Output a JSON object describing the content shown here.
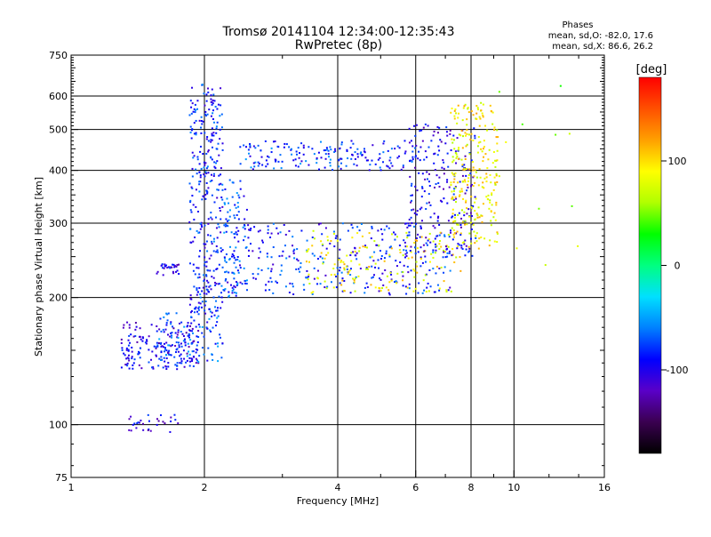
{
  "chart_data": {
    "type": "scatter",
    "title": "Tromsø 20141104 12:34:00-12:35:43",
    "subtitle": "RwPretec (8p)",
    "xlabel": "Frequency [MHz]",
    "ylabel": "Stationary phase Virtual Height [km]",
    "x_scale": "log",
    "y_scale": "log",
    "xlim": [
      1,
      16
    ],
    "ylim": [
      75,
      750
    ],
    "x_ticks": [
      1,
      2,
      4,
      6,
      8,
      10,
      16
    ],
    "x_tick_labels": [
      "1",
      "2",
      "4",
      "6",
      "8",
      "10",
      "16"
    ],
    "y_ticks": [
      75,
      100,
      200,
      300,
      400,
      500,
      600,
      750
    ],
    "y_tick_labels": [
      "75",
      "100",
      "200",
      "300",
      "400",
      "500",
      "600",
      "750"
    ],
    "x_gridlines": [
      2,
      4,
      6,
      8,
      10
    ],
    "y_gridlines": [
      100,
      200,
      300,
      400,
      500,
      600
    ],
    "grid": true,
    "stats": {
      "heading": "Phases",
      "line_o": "mean, sd,O: -82.0, 17.6",
      "line_x": "mean, sd,X: 86.6, 26.2"
    },
    "colorbar": {
      "label": "[deg]",
      "range": [
        -180,
        180
      ],
      "ticks": [
        100,
        0,
        -100
      ],
      "tick_labels": [
        "100",
        "0",
        "-100"
      ],
      "colors": [
        "#000000",
        "#3a0050",
        "#5a00c8",
        "#0000ff",
        "#0080ff",
        "#00e0ff",
        "#00ff80",
        "#00ff00",
        "#b0ff00",
        "#ffff00",
        "#ffa000",
        "#ff5000",
        "#ff0000"
      ]
    },
    "point_clusters": [
      {
        "name": "low-layer-below-2mhz",
        "x_range": [
          1.3,
          1.95
        ],
        "y_range": [
          135,
          175
        ],
        "phase": -100,
        "count": 180
      },
      {
        "name": "e-layer-spread",
        "x_range": [
          1.55,
          2.2
        ],
        "y_range": [
          140,
          190
        ],
        "phase": -75,
        "count": 120
      },
      {
        "name": "sporadic-100km",
        "x_range": [
          1.35,
          1.75
        ],
        "y_range": [
          96,
          106
        ],
        "phase": -100,
        "count": 30
      },
      {
        "name": "f-spread-2mhz-column",
        "x_range": [
          1.85,
          2.2
        ],
        "y_range": [
          180,
          640
        ],
        "phase": -85,
        "count": 320
      },
      {
        "name": "f-2mhz-column-outer",
        "x_range": [
          2.2,
          2.5
        ],
        "y_range": [
          200,
          380
        ],
        "phase": -75,
        "count": 90
      },
      {
        "name": "spread-230km-patch",
        "x_range": [
          1.55,
          1.75
        ],
        "y_range": [
          225,
          240
        ],
        "phase": -100,
        "count": 30
      },
      {
        "name": "high-echo-x-trace",
        "x_range": [
          2.4,
          6.0
        ],
        "y_range": [
          400,
          470
        ],
        "phase": -80,
        "count": 180
      },
      {
        "name": "main-f-trace",
        "x_range": [
          2.2,
          7.2
        ],
        "y_range": [
          203,
          300
        ],
        "phase": -85,
        "count": 320
      },
      {
        "name": "x-mode-trace",
        "x_range": [
          3.4,
          7.6
        ],
        "y_range": [
          205,
          290
        ],
        "phase": 90,
        "count": 160
      },
      {
        "name": "cusp-o-mode",
        "x_range": [
          5.8,
          8.2
        ],
        "y_range": [
          250,
          520
        ],
        "phase": -100,
        "count": 220
      },
      {
        "name": "cusp-x-mode",
        "x_range": [
          7.2,
          9.2
        ],
        "y_range": [
          260,
          580
        ],
        "phase": 90,
        "count": 260
      },
      {
        "name": "scattered-far",
        "x_range": [
          9.0,
          14.0
        ],
        "y_range": [
          230,
          640
        ],
        "phase": 60,
        "count": 12
      }
    ]
  }
}
